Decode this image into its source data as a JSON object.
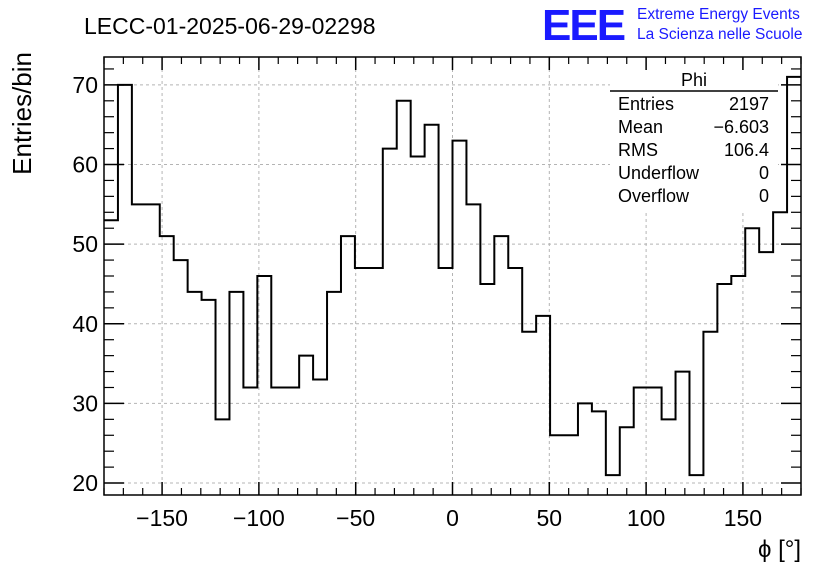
{
  "header": {
    "title": "LECC-01-2025-06-29-02298",
    "logo_text": "EEE",
    "logo_line1": "Extreme Energy Events",
    "logo_line2": "La Scienza nelle Scuole",
    "logo_color": "#1a1aff"
  },
  "stats": {
    "name": "Phi",
    "rows": [
      {
        "label": "Entries",
        "value": "2197"
      },
      {
        "label": "Mean",
        "value": "−6.603"
      },
      {
        "label": "RMS",
        "value": "106.4"
      },
      {
        "label": "Underflow",
        "value": "0"
      },
      {
        "label": "Overflow",
        "value": "0"
      }
    ]
  },
  "chart_data": {
    "type": "histogram-step",
    "title": "LECC-01-2025-06-29-02298",
    "xlabel": "ϕ [°]",
    "ylabel": "Entries/bin",
    "xlim": [
      -180,
      180
    ],
    "ylim": [
      18.5,
      73.5
    ],
    "grid": true,
    "bin_width": 7.2,
    "xticks": [
      -150,
      -100,
      -50,
      0,
      50,
      100,
      150
    ],
    "xtick_labels": [
      "−150",
      "−100",
      "−50",
      "0",
      "50",
      "100",
      "150"
    ],
    "yticks": [
      20,
      30,
      40,
      50,
      60,
      70
    ],
    "ytick_labels": [
      "20",
      "30",
      "40",
      "50",
      "60",
      "70"
    ],
    "values": [
      53,
      70,
      55,
      55,
      51,
      48,
      44,
      43,
      28,
      44,
      32,
      46,
      32,
      32,
      36,
      33,
      44,
      51,
      47,
      47,
      62,
      68,
      61,
      65,
      47,
      63,
      55,
      45,
      51,
      47,
      39,
      41,
      26,
      26,
      30,
      29,
      21,
      27,
      32,
      32,
      28,
      34,
      21,
      39,
      45,
      46,
      52,
      49,
      54,
      71
    ]
  }
}
